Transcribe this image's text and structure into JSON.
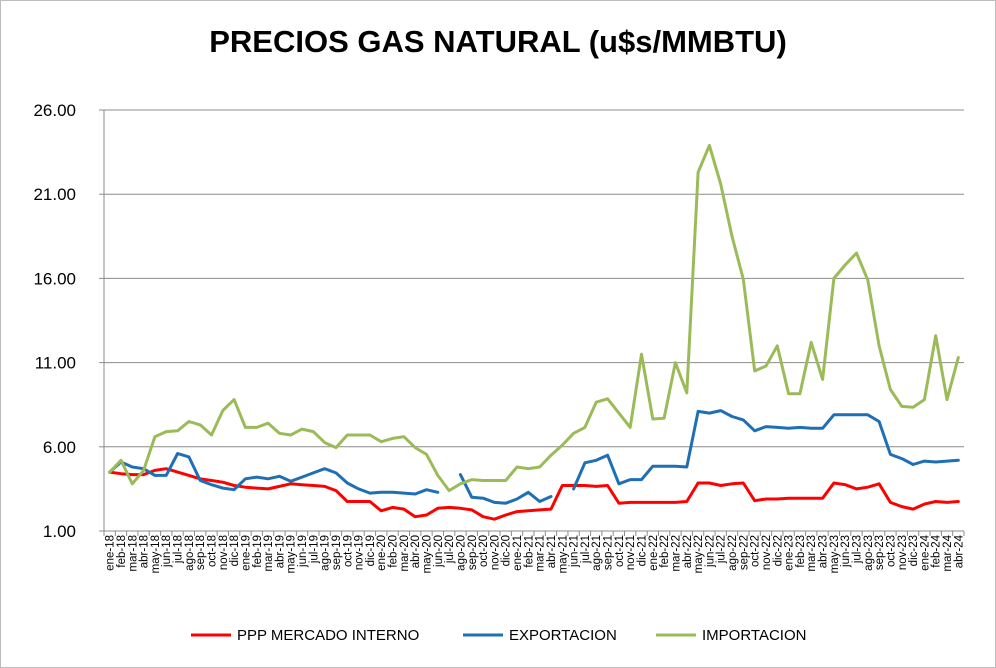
{
  "chart_data": {
    "type": "line",
    "title": "PRECIOS GAS NATURAL (u$s/MMBTU)",
    "xlabel": "",
    "ylabel": "",
    "ylim": [
      1.0,
      26.0
    ],
    "yticks": [
      "1.00",
      "6.00",
      "11.00",
      "16.00",
      "21.00",
      "26.00"
    ],
    "grid": "horizontal",
    "legend_position": "bottom",
    "categories": [
      "ene-18",
      "feb-18",
      "mar-18",
      "abr-18",
      "may-18",
      "jun-18",
      "jul-18",
      "ago-18",
      "sep-18",
      "oct-18",
      "nov-18",
      "dic-18",
      "ene-19",
      "feb-19",
      "mar-19",
      "abr-19",
      "may-19",
      "jun-19",
      "jul-19",
      "ago-19",
      "sep-19",
      "oct-19",
      "nov-19",
      "dic-19",
      "ene-20",
      "feb-20",
      "mar-20",
      "abr-20",
      "may-20",
      "jun-20",
      "jul-20",
      "ago-20",
      "sep-20",
      "oct-20",
      "nov-20",
      "dic-20",
      "ene-21",
      "feb-21",
      "mar-21",
      "abr-21",
      "may-21",
      "jun-21",
      "jul-21",
      "ago-21",
      "sep-21",
      "oct-21",
      "nov-21",
      "dic-21",
      "ene-22",
      "feb-22",
      "mar-22",
      "abr-22",
      "may-22",
      "jun-22",
      "jul-22",
      "ago-22",
      "sep-22",
      "oct-22",
      "nov-22",
      "dic-22",
      "ene-23",
      "feb-23",
      "mar-23",
      "abr-23",
      "may-23",
      "jun-23",
      "jul-23",
      "ago-23",
      "sep-23",
      "oct-23",
      "nov-23",
      "dic-23",
      "ene-24",
      "feb-24",
      "mar-24",
      "abr-24"
    ],
    "series": [
      {
        "name": "PPP MERCADO INTERNO",
        "color": "#ff0000",
        "values": [
          4.5,
          4.4,
          4.35,
          4.35,
          4.6,
          4.7,
          4.5,
          4.3,
          4.1,
          4.0,
          3.9,
          3.7,
          3.6,
          3.55,
          3.5,
          3.65,
          3.8,
          3.75,
          3.7,
          3.65,
          3.4,
          2.75,
          2.75,
          2.75,
          2.2,
          2.4,
          2.3,
          1.85,
          1.95,
          2.35,
          2.4,
          2.35,
          2.25,
          1.85,
          1.7,
          1.95,
          2.15,
          2.2,
          2.25,
          2.3,
          3.7,
          3.7,
          3.7,
          3.65,
          3.7,
          2.65,
          2.7,
          2.7,
          2.7,
          2.7,
          2.7,
          2.75,
          3.85,
          3.85,
          3.7,
          3.8,
          3.85,
          2.8,
          2.9,
          2.9,
          2.95,
          2.95,
          2.95,
          2.95,
          3.85,
          3.75,
          3.5,
          3.6,
          3.8,
          2.7,
          2.45,
          2.3,
          2.6,
          2.75,
          2.7,
          2.75
        ]
      },
      {
        "name": "EXPORTACION",
        "color": "#1f6fb5",
        "values": [
          4.5,
          5.1,
          4.8,
          4.7,
          4.3,
          4.3,
          5.6,
          5.4,
          4.0,
          3.75,
          3.55,
          3.45,
          4.1,
          4.2,
          4.1,
          4.25,
          3.95,
          4.2,
          4.45,
          4.7,
          4.45,
          3.85,
          3.5,
          3.25,
          3.3,
          3.3,
          3.25,
          3.2,
          3.45,
          3.3,
          null,
          4.35,
          3.0,
          2.95,
          2.7,
          2.65,
          2.9,
          3.3,
          2.75,
          3.05,
          null,
          3.5,
          5.05,
          5.2,
          5.5,
          3.8,
          4.05,
          4.05,
          4.85,
          4.85,
          4.85,
          4.8,
          8.1,
          8.0,
          8.15,
          7.8,
          7.6,
          6.95,
          7.2,
          7.15,
          7.1,
          7.15,
          7.1,
          7.1,
          7.9,
          7.9,
          7.9,
          7.9,
          7.5,
          5.55,
          5.3,
          4.95,
          5.15,
          5.1,
          5.15,
          5.2
        ]
      },
      {
        "name": "IMPORTACION",
        "color": "#9bbb59",
        "values": [
          4.5,
          5.2,
          3.8,
          4.6,
          6.6,
          6.9,
          6.95,
          7.5,
          7.3,
          6.7,
          8.15,
          8.8,
          7.15,
          7.15,
          7.4,
          6.8,
          6.7,
          7.05,
          6.9,
          6.25,
          5.95,
          6.7,
          6.7,
          6.7,
          6.3,
          6.5,
          6.6,
          5.95,
          5.55,
          4.3,
          3.4,
          3.8,
          4.05,
          4.0,
          4.0,
          4.0,
          4.8,
          4.7,
          4.8,
          5.5,
          6.1,
          6.8,
          7.15,
          8.65,
          8.85,
          8.0,
          7.15,
          11.5,
          7.65,
          7.7,
          11.0,
          9.2,
          22.3,
          23.9,
          21.6,
          18.5,
          15.95,
          10.5,
          10.8,
          12.0,
          9.15,
          9.15,
          12.2,
          10.0,
          16.0,
          16.8,
          17.5,
          15.9,
          12.0,
          9.4,
          8.4,
          8.35,
          8.8,
          12.6,
          8.8,
          11.3
        ]
      }
    ]
  }
}
